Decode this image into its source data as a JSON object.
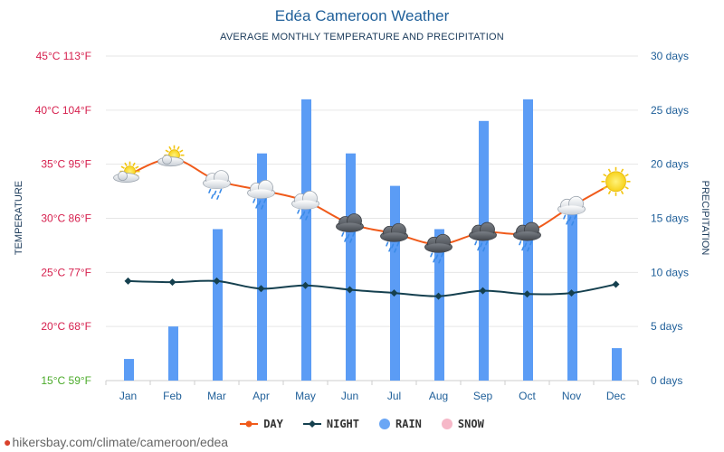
{
  "header": {
    "title": "Edéa Cameroon Weather",
    "subtitle": "AVERAGE MONTHLY TEMPERATURE AND PRECIPITATION"
  },
  "chart_data": {
    "type": "line+bar",
    "title": "Edéa Cameroon Weather",
    "subtitle": "AVERAGE MONTHLY TEMPERATURE AND PRECIPITATION",
    "categories": [
      "Jan",
      "Feb",
      "Mar",
      "Apr",
      "May",
      "Jun",
      "Jul",
      "Aug",
      "Sep",
      "Oct",
      "Nov",
      "Dec"
    ],
    "left_axis": {
      "label": "TEMPERATURE",
      "range": [
        15,
        45
      ],
      "ticks": [
        {
          "value": 45,
          "label": "45°C 113°F"
        },
        {
          "value": 40,
          "label": "40°C 104°F"
        },
        {
          "value": 35,
          "label": "35°C 95°F"
        },
        {
          "value": 30,
          "label": "30°C 86°F"
        },
        {
          "value": 25,
          "label": "25°C 77°F"
        },
        {
          "value": 20,
          "label": "20°C 68°F"
        },
        {
          "value": 15,
          "label": "15°C 59°F"
        }
      ]
    },
    "right_axis": {
      "label": "PRECIPITATION",
      "range": [
        0,
        30
      ],
      "ticks": [
        {
          "value": 30,
          "label": "30 days"
        },
        {
          "value": 25,
          "label": "25 days"
        },
        {
          "value": 20,
          "label": "20 days"
        },
        {
          "value": 15,
          "label": "15 days"
        },
        {
          "value": 10,
          "label": "10 days"
        },
        {
          "value": 5,
          "label": "5 days"
        },
        {
          "value": 0,
          "label": "0 days"
        }
      ]
    },
    "series": [
      {
        "name": "DAY",
        "type": "line",
        "axis": "left",
        "color": "#f05a1a",
        "values": [
          34.0,
          35.5,
          33.5,
          32.6,
          31.6,
          29.5,
          28.6,
          27.6,
          28.7,
          28.7,
          31.1,
          33.4
        ]
      },
      {
        "name": "NIGHT",
        "type": "line",
        "axis": "left",
        "color": "#15404f",
        "values": [
          24.2,
          24.1,
          24.2,
          23.5,
          23.8,
          23.4,
          23.1,
          22.8,
          23.3,
          23.0,
          23.1,
          23.9
        ]
      },
      {
        "name": "RAIN",
        "type": "bar",
        "axis": "right",
        "color": "#5b9cf5",
        "values": [
          2,
          5,
          14,
          21,
          26,
          21,
          18,
          14,
          24,
          26,
          16,
          3
        ]
      }
    ],
    "icons": [
      "partly-cloudy",
      "partly-cloudy",
      "rain-cloud",
      "rain-cloud",
      "rain-cloud",
      "storm-cloud",
      "storm-cloud",
      "storm-cloud",
      "storm-cloud",
      "storm-cloud",
      "rain-cloud",
      "sun"
    ]
  },
  "legend": [
    {
      "name": "DAY",
      "color": "#f05a1a"
    },
    {
      "name": "NIGHT",
      "color": "#15404f"
    },
    {
      "name": "RAIN",
      "color": "#6aa6f5"
    },
    {
      "name": "SNOW",
      "color": "#f6b8c8"
    }
  ],
  "colors": {
    "hot": "#d6204e",
    "cool": "#4bab2a",
    "right_axis": "#1f5f99",
    "grid": "#e6e6e6"
  },
  "watermark": "hikersbay.com/climate/cameroon/edea"
}
